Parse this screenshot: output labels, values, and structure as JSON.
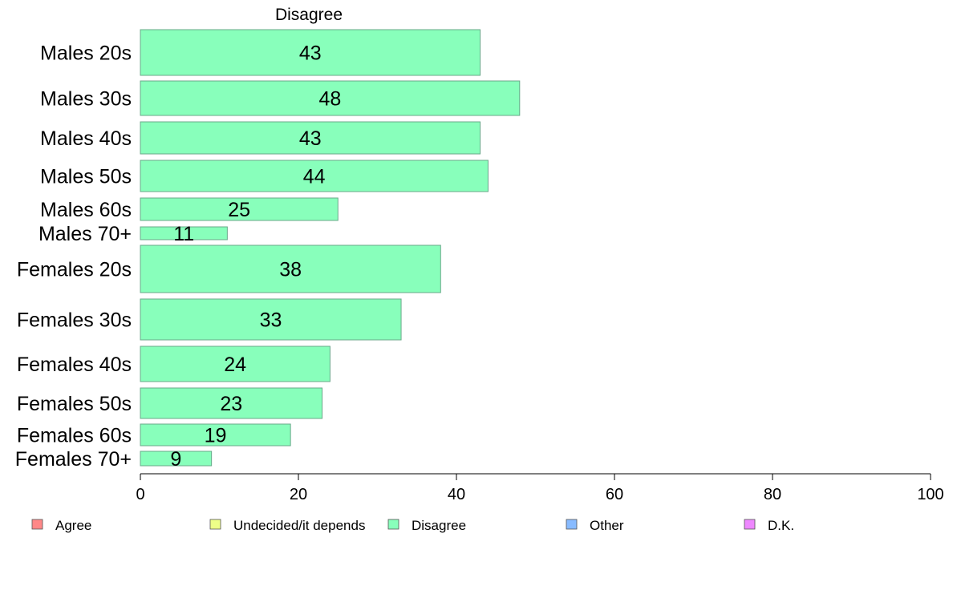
{
  "chart_data": {
    "type": "bar",
    "orientation": "horizontal",
    "title": "Disagree",
    "xlabel": "",
    "ylabel": "",
    "xlim": [
      0,
      100
    ],
    "x_ticks": [
      0,
      20,
      40,
      60,
      80,
      100
    ],
    "grid": false,
    "legend_position": "bottom",
    "categories": [
      "Males 20s",
      "Males 30s",
      "Males 40s",
      "Males 50s",
      "Males 60s",
      "Males 70+",
      "Females 20s",
      "Females 30s",
      "Females 40s",
      "Females 50s",
      "Females 60s",
      "Females 70+"
    ],
    "series": [
      {
        "name": "Disagree",
        "color": "#88ffbb",
        "values": [
          43,
          48,
          43,
          44,
          25,
          11,
          38,
          33,
          24,
          23,
          19,
          9
        ]
      }
    ],
    "legend": [
      {
        "label": "Agree",
        "color": "#ff8888"
      },
      {
        "label": "Undecided/it depends",
        "color": "#eeff88"
      },
      {
        "label": "Disagree",
        "color": "#88ffbb"
      },
      {
        "label": "Other",
        "color": "#88bbff"
      },
      {
        "label": "D.K.",
        "color": "#ee88ff"
      }
    ]
  }
}
